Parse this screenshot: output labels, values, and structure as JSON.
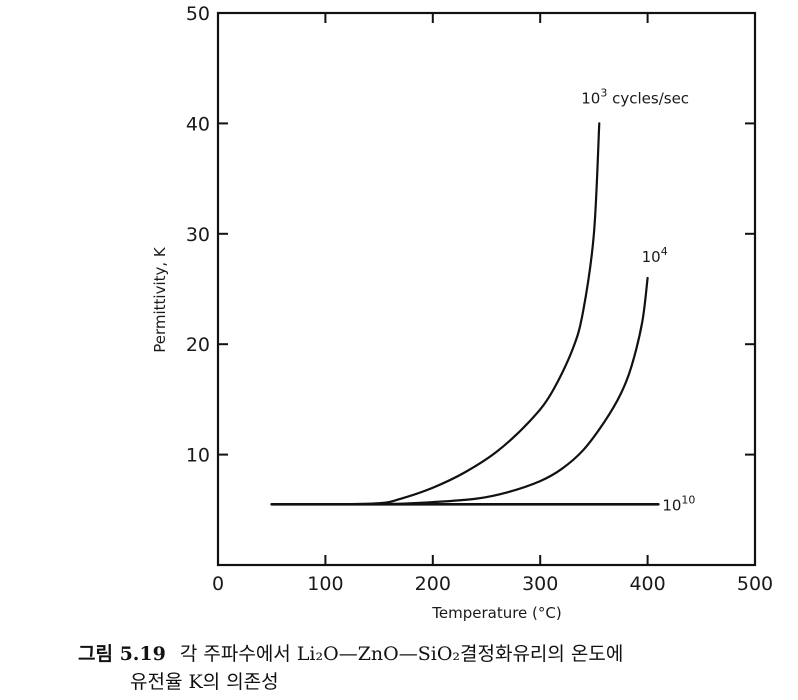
{
  "chart_data": {
    "type": "line",
    "title": "",
    "xlabel": "Temperature (°C)",
    "ylabel": "Permittivity, K",
    "xlim": [
      0,
      500
    ],
    "ylim": [
      0,
      50
    ],
    "x_ticks": [
      0,
      100,
      200,
      300,
      400,
      500
    ],
    "y_ticks": [
      10,
      20,
      30,
      40,
      50
    ],
    "x_tick_labels": [
      "0",
      "100",
      "200",
      "300",
      "400",
      "500"
    ],
    "y_tick_labels": [
      "10",
      "20",
      "30",
      "40",
      "50"
    ],
    "grid": false,
    "series": [
      {
        "name": "10³ cycles/sec",
        "label_base": "10",
        "label_exp": "3",
        "label_suffix": " cycles/sec",
        "x": [
          50,
          100,
          150,
          170,
          200,
          230,
          260,
          290,
          310,
          330,
          340,
          350,
          355
        ],
        "y": [
          5.5,
          5.5,
          5.6,
          6.0,
          7.0,
          8.4,
          10.3,
          13.0,
          15.5,
          19.5,
          23.0,
          30.0,
          40.0
        ]
      },
      {
        "name": "10⁴",
        "label_base": "10",
        "label_exp": "4",
        "label_suffix": "",
        "x": [
          50,
          150,
          200,
          240,
          270,
          300,
          320,
          340,
          360,
          375,
          385,
          395,
          400
        ],
        "y": [
          5.5,
          5.5,
          5.7,
          6.0,
          6.6,
          7.6,
          8.7,
          10.4,
          13.0,
          15.5,
          18.0,
          22.0,
          26.0
        ]
      },
      {
        "name": "10¹⁰",
        "label_base": "10",
        "label_exp": "10",
        "label_suffix": "",
        "x": [
          50,
          410
        ],
        "y": [
          5.5,
          5.5
        ]
      }
    ]
  },
  "caption": {
    "figure_number": "그림 5.19",
    "line1": "각 주파수에서 Li₂O—ZnO—SiO₂결정화유리의 온도에",
    "line2": "유전율 K의 의존성"
  }
}
